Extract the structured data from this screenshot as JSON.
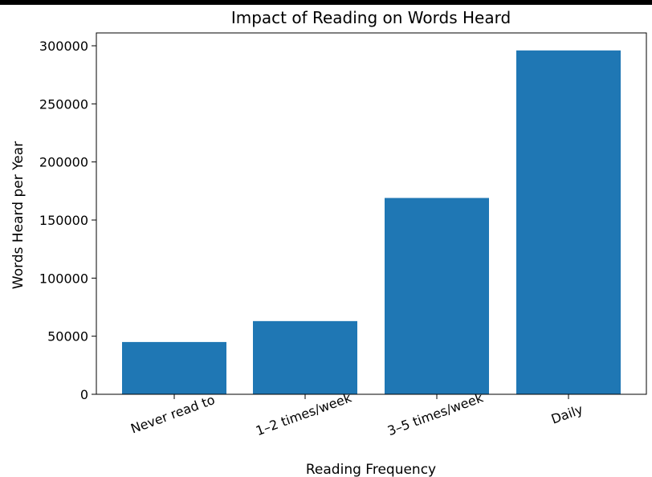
{
  "chart_data": {
    "type": "bar",
    "title": "Impact of Reading on Words Heard",
    "xlabel": "Reading Frequency",
    "ylabel": "Words Heard per Year",
    "categories": [
      "Never read to",
      "1–2 times/week",
      "3–5 times/week",
      "Daily"
    ],
    "values": [
      45000,
      63000,
      169000,
      296000
    ],
    "ylim": [
      0,
      310000
    ],
    "yticks": [
      0,
      50000,
      100000,
      150000,
      200000,
      250000,
      300000
    ],
    "ytick_labels": [
      "0",
      "50000",
      "100000",
      "150000",
      "200000",
      "250000",
      "300000"
    ],
    "bar_color": "#1f77b4",
    "grid": false,
    "legend": "none"
  }
}
